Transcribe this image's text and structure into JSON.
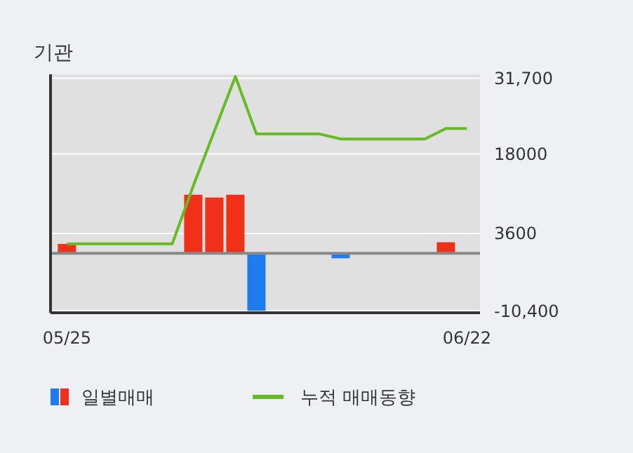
{
  "chart_data": {
    "type": "bar",
    "title": "기관",
    "categories": [
      "05/25",
      null,
      null,
      null,
      null,
      null,
      null,
      null,
      null,
      null,
      null,
      null,
      null,
      null,
      null,
      null,
      null,
      null,
      null,
      "06/22"
    ],
    "series": [
      {
        "name": "일별매매",
        "colors": [
          "#f03018",
          "#f03018",
          "#f03018",
          "#f03018",
          "#f03018",
          "#f03018",
          "#f03018",
          "#f03018",
          "#f03018",
          "#1f7cf0",
          "#f03018",
          "#f03018",
          "#f03018",
          "#1f7cf0",
          "#f03018",
          "#f03018",
          "#f03018",
          "#f03018",
          "#f03018",
          "#f03018"
        ],
        "color": "#f03018",
        "values": [
          1700,
          0,
          0,
          0,
          0,
          0,
          10600,
          10100,
          10600,
          -10400,
          0,
          0,
          0,
          -900,
          0,
          0,
          0,
          0,
          2000,
          0
        ]
      },
      {
        "name": "누적 매매동향",
        "type": "line",
        "color": "#66bb22",
        "values": [
          1700,
          1700,
          1700,
          1700,
          1700,
          1700,
          12200,
          22100,
          32000,
          21600,
          21600,
          21600,
          21600,
          20700,
          20700,
          20700,
          20700,
          20700,
          22600,
          22600
        ]
      }
    ],
    "ylim": [
      -10760,
      32400
    ],
    "yticks": [
      {
        "value": 31700,
        "label": "31,700"
      },
      18000,
      3600,
      {
        "value": -10400,
        "label": "-10,400"
      }
    ],
    "grid": "y",
    "legend": "bottom",
    "marker": "none",
    "line_style": "solid"
  }
}
